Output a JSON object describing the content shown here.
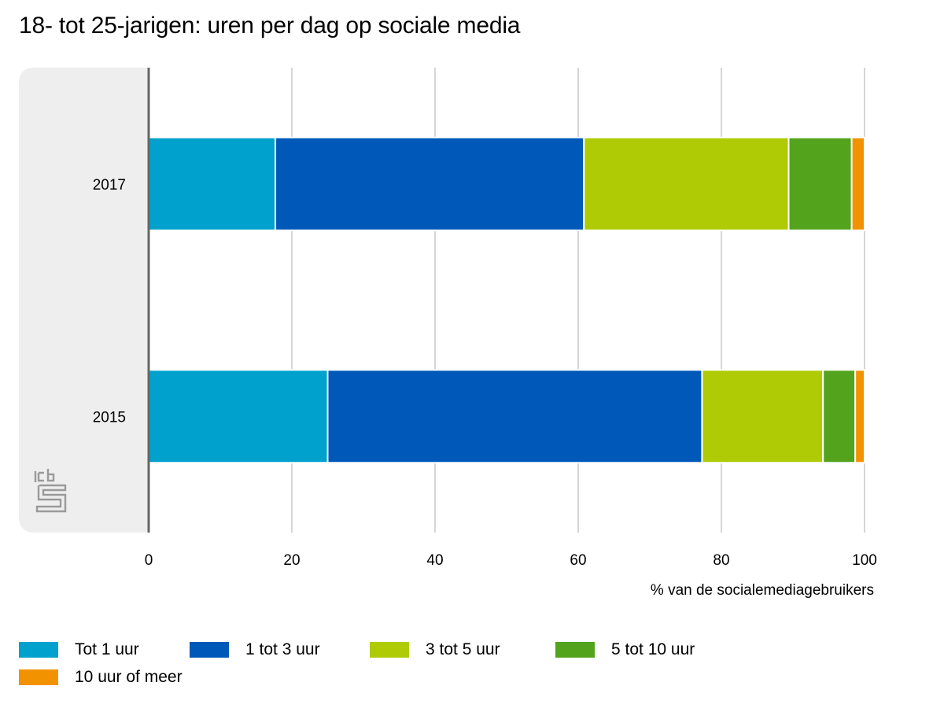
{
  "chart_data": {
    "type": "bar",
    "orientation": "horizontal",
    "stacked": true,
    "title": "18- tot 25-jarigen: uren per dag op sociale media",
    "xlabel": "% van de socialemediagebruikers",
    "ylabel": "",
    "xlim": [
      0,
      100
    ],
    "xticks": [
      0,
      20,
      40,
      60,
      80,
      100
    ],
    "xtick_labels": [
      "0",
      "20",
      "40",
      "60",
      "80",
      "100"
    ],
    "grid": true,
    "categories": [
      "2017",
      "2015"
    ],
    "series": [
      {
        "name": "Tot 1 uur",
        "color": "#00a1cd",
        "values": [
          17.7,
          25.0
        ]
      },
      {
        "name": "1 tot 3 uur",
        "color": "#0058b8",
        "values": [
          43.1,
          52.3
        ]
      },
      {
        "name": "3 tot 5 uur",
        "color": "#afcb05",
        "values": [
          28.6,
          16.9
        ]
      },
      {
        "name": "5 tot 10 uur",
        "color": "#53a31d",
        "values": [
          8.8,
          4.5
        ]
      },
      {
        "name": "10 uur of meer",
        "color": "#f39200",
        "values": [
          1.8,
          1.3
        ]
      }
    ],
    "legend_position": "bottom-left"
  },
  "logo": {
    "name": "cbs-logo"
  }
}
